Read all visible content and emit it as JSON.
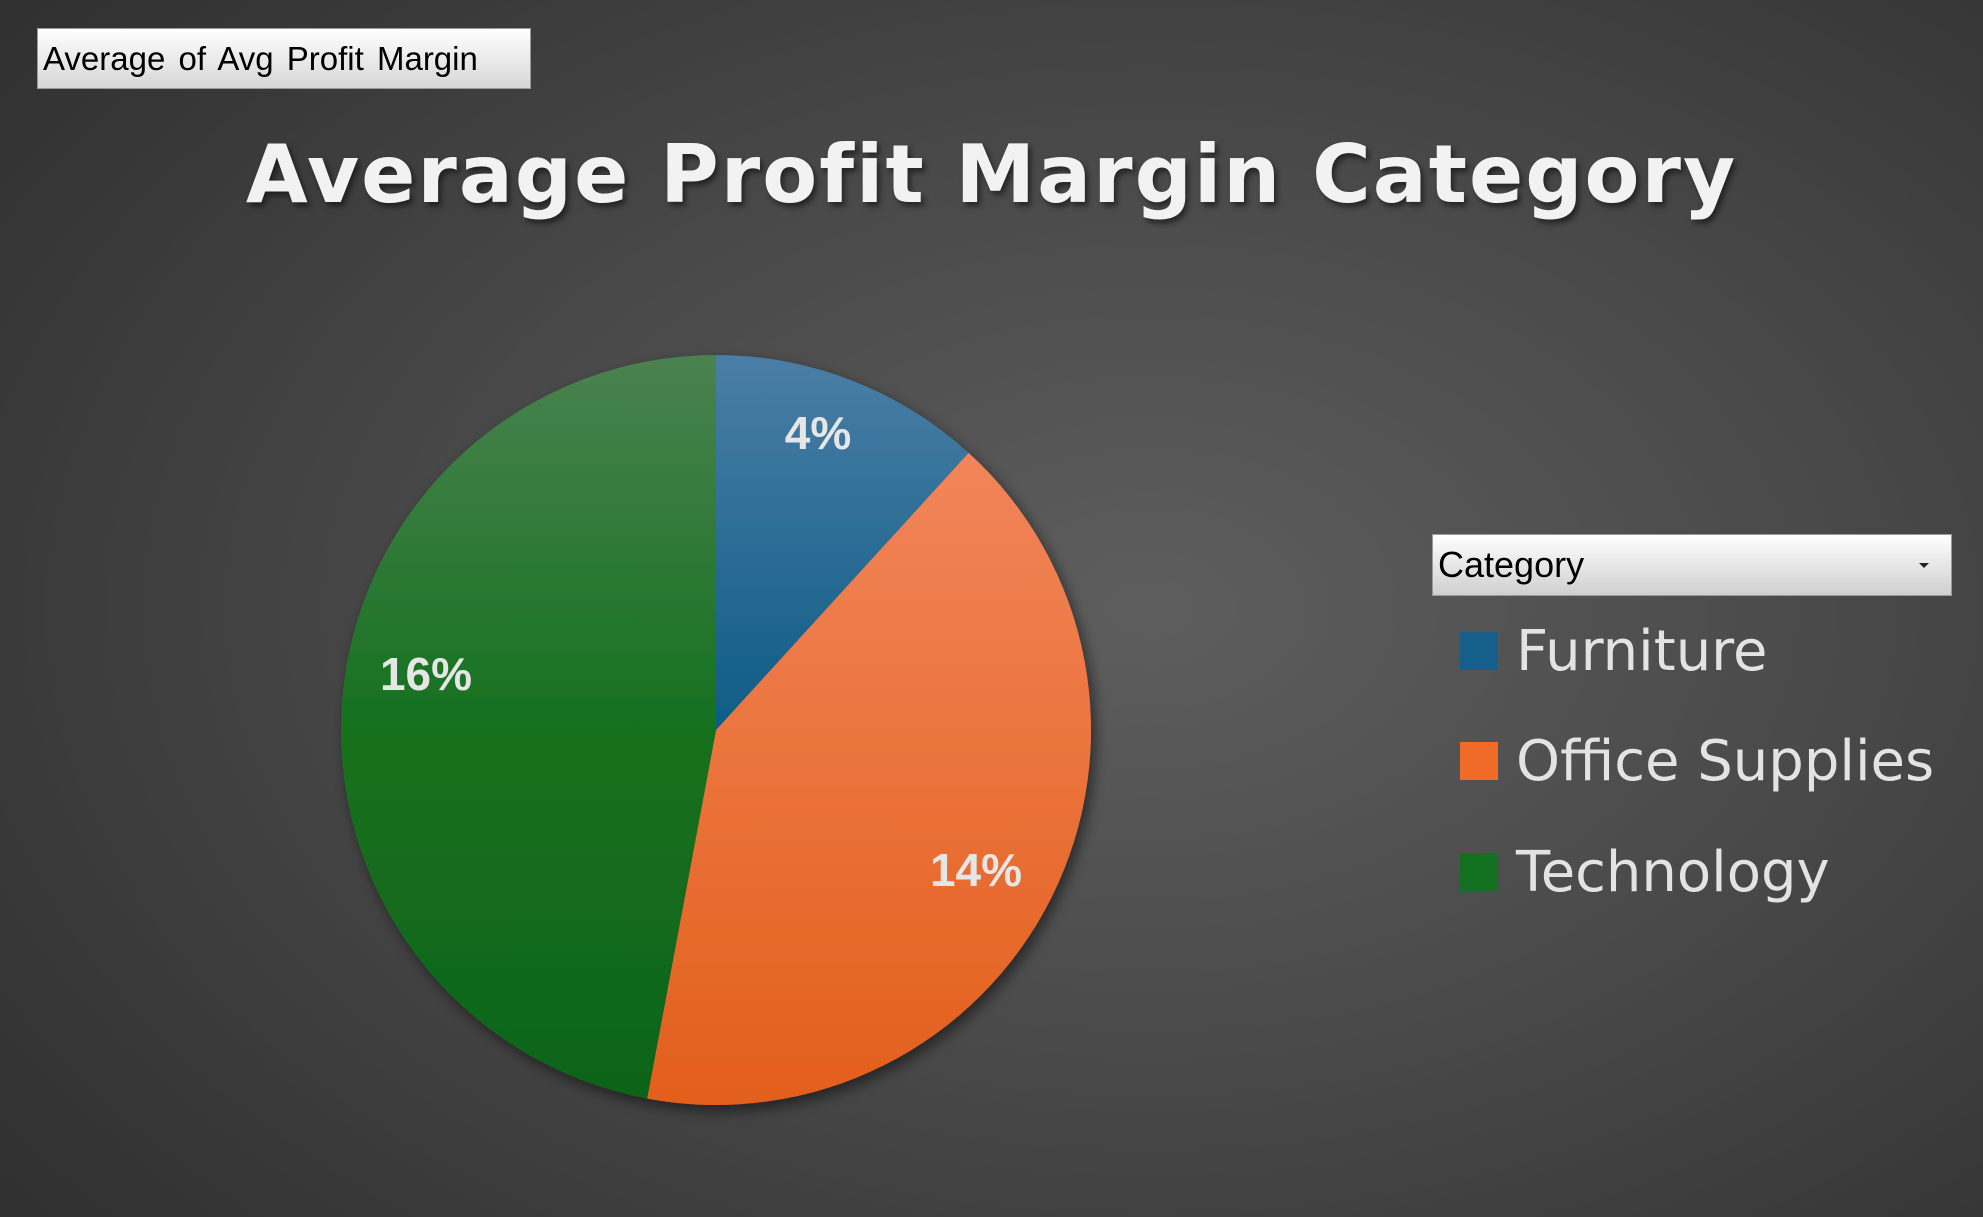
{
  "field_button": {
    "label": "Average of Avg Profit Margin"
  },
  "legend": {
    "header": "Category"
  },
  "colors": {
    "Furniture": "#155f8a",
    "Office Supplies": "#ef6b27",
    "Technology": "#137020"
  },
  "chart_data": {
    "type": "pie",
    "title": "Average Profit Margin Category",
    "categories": [
      "Furniture",
      "Office Supplies",
      "Technology"
    ],
    "values": [
      0.04,
      0.14,
      0.16
    ],
    "data_labels": [
      "4%",
      "14%",
      "16%"
    ],
    "legend_position": "right"
  }
}
